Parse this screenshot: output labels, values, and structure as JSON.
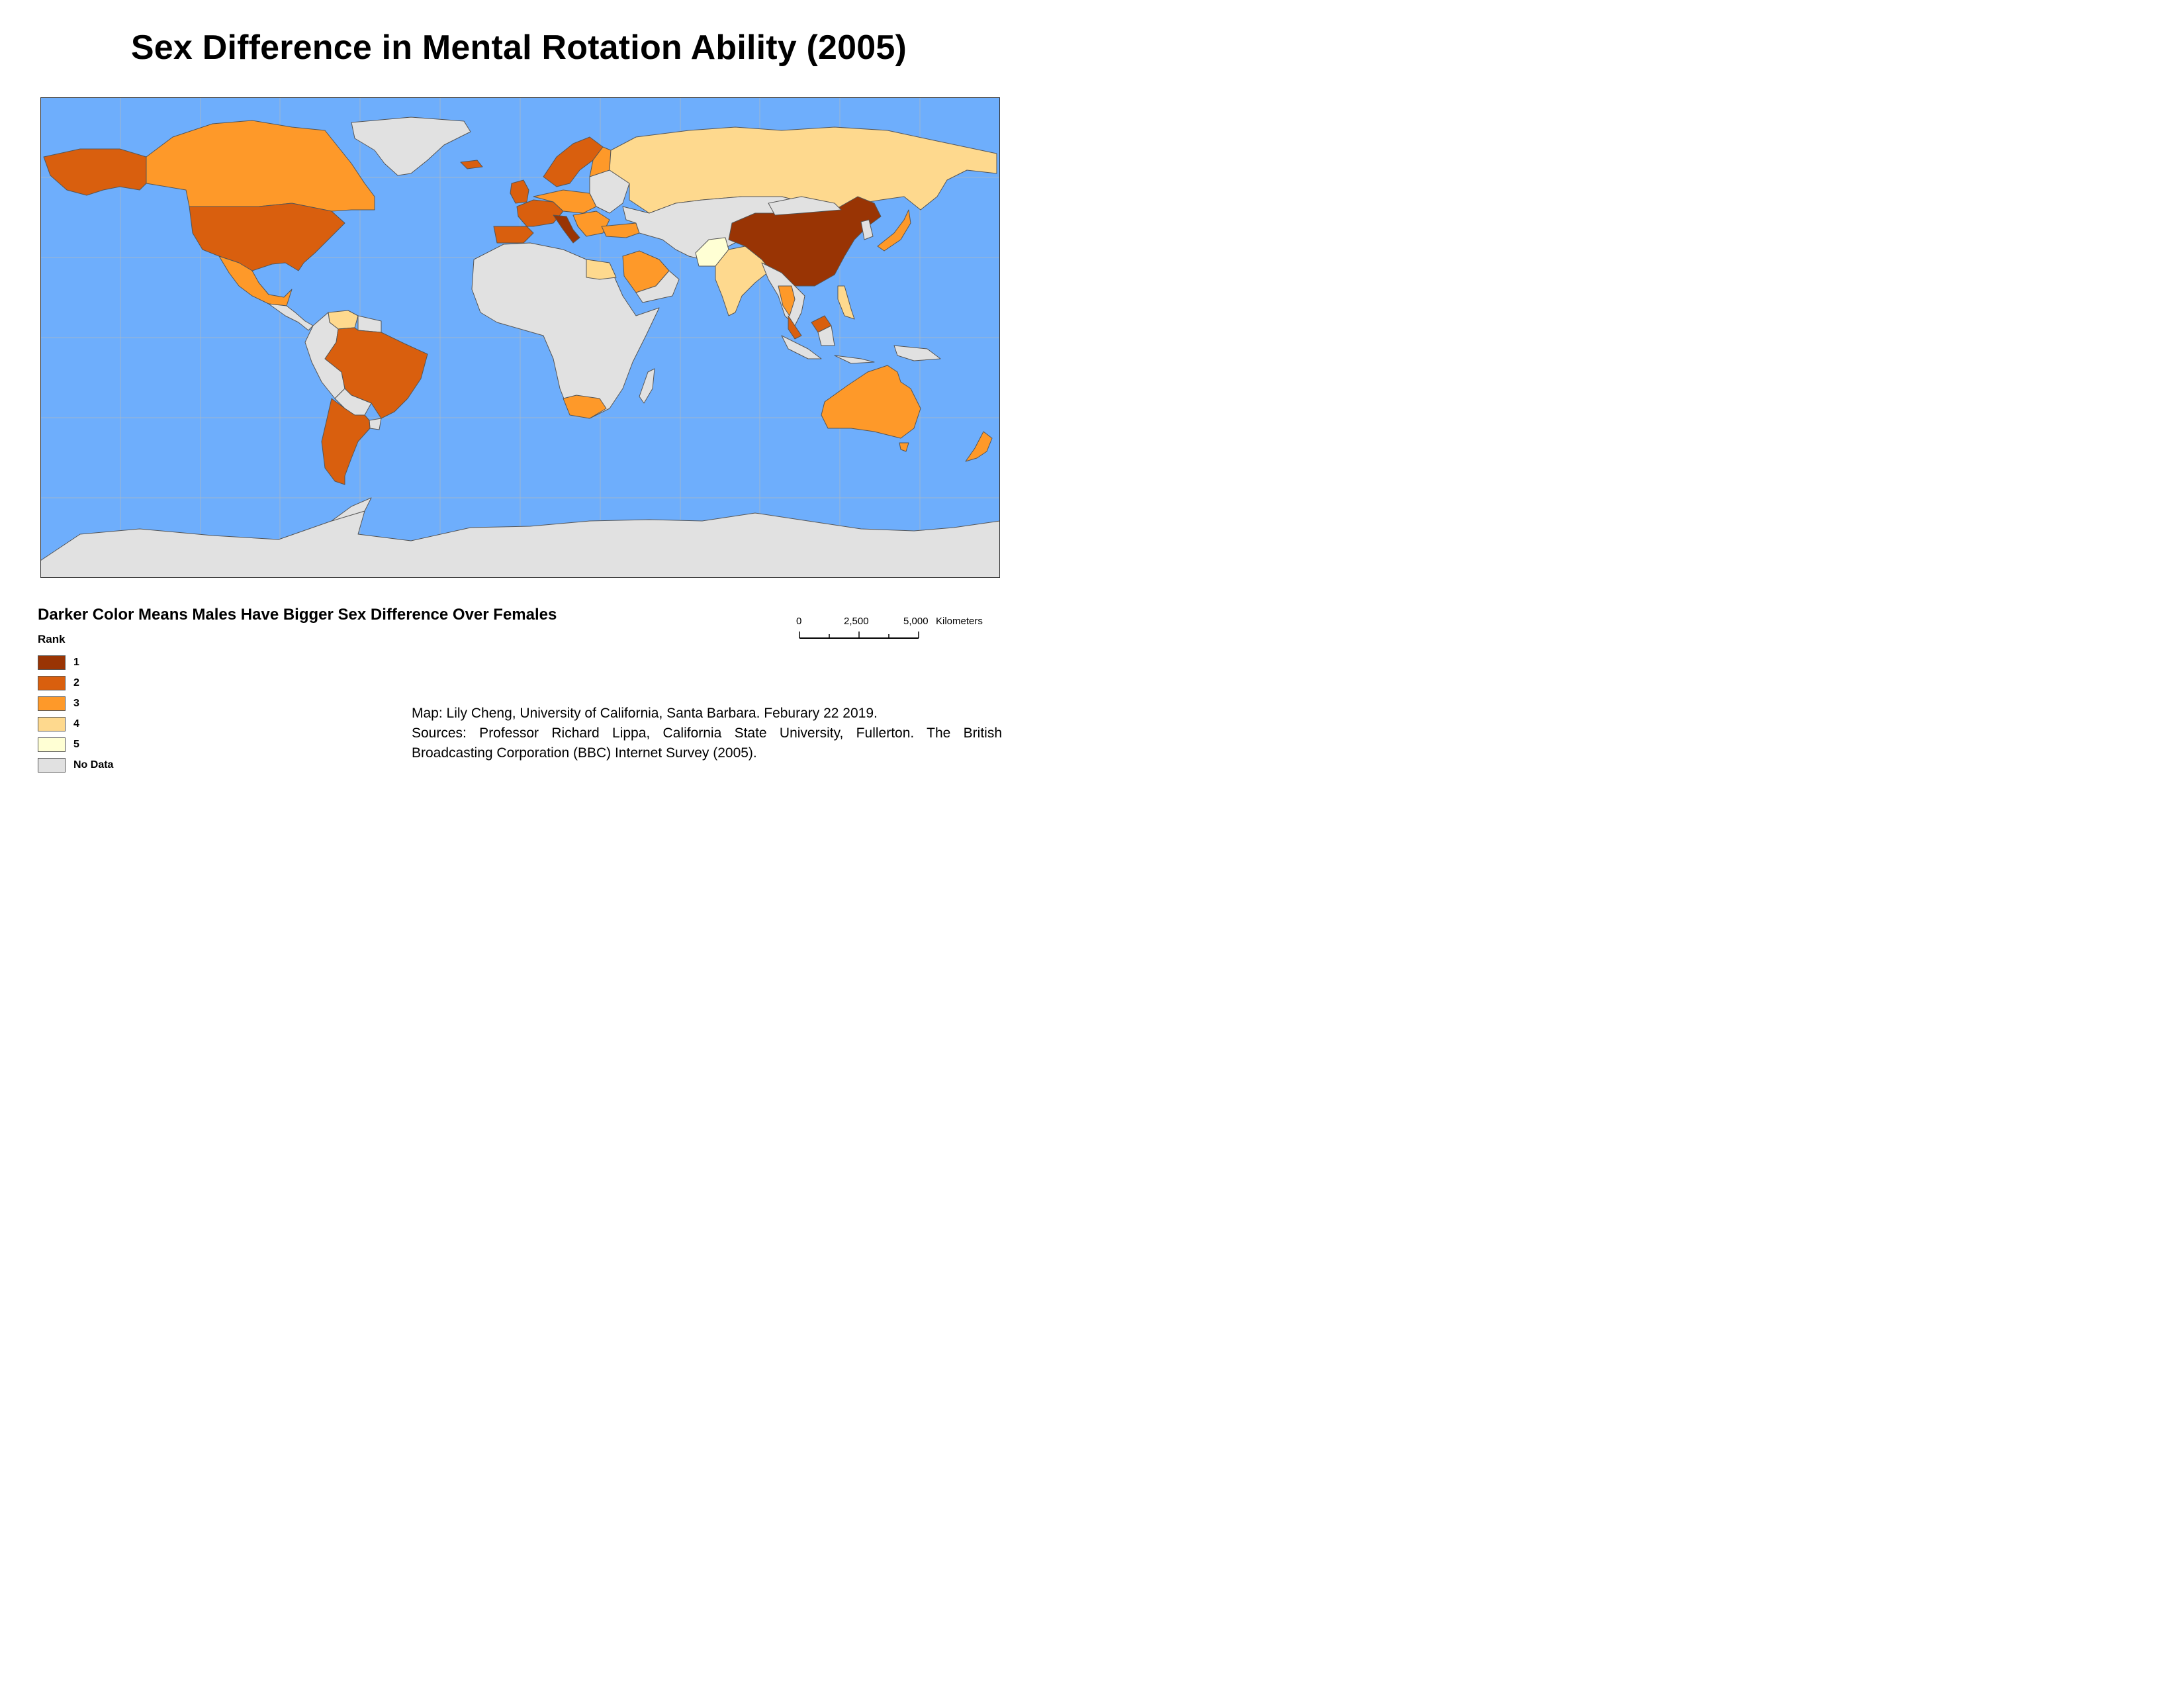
{
  "title": "Sex Difference in Mental Rotation Ability (2005)",
  "colors": {
    "ocean": "#6eaefc",
    "graticule": "#9fb7cf",
    "border": "#555555",
    "rank1": "#993404",
    "rank2": "#d95f0e",
    "rank3": "#fe9929",
    "rank4": "#fed98e",
    "rank5": "#ffffd4",
    "nodata": "#e1e1e1"
  },
  "legend": {
    "heading": "Darker Color Means Males Have Bigger Sex Difference Over Females",
    "title": "Rank",
    "items": [
      {
        "label": "1",
        "color": "#993404"
      },
      {
        "label": "2",
        "color": "#d95f0e"
      },
      {
        "label": "3",
        "color": "#fe9929"
      },
      {
        "label": "4",
        "color": "#fed98e"
      },
      {
        "label": "5",
        "color": "#ffffd4"
      },
      {
        "label": "No Data",
        "color": "#e1e1e1"
      }
    ]
  },
  "scale_bar": {
    "ticks": [
      "0",
      "2,500",
      "5,000"
    ],
    "unit": "Kilometers"
  },
  "credits": {
    "line1": "Map: Lily Cheng, University of California, Santa Barbara. Feburary 22 2019.",
    "line2": "Sources: Professor Richard Lippa, California State University, Fullerton. The British Broadcasting Corporation (BBC) Internet Survey (2005)."
  }
}
